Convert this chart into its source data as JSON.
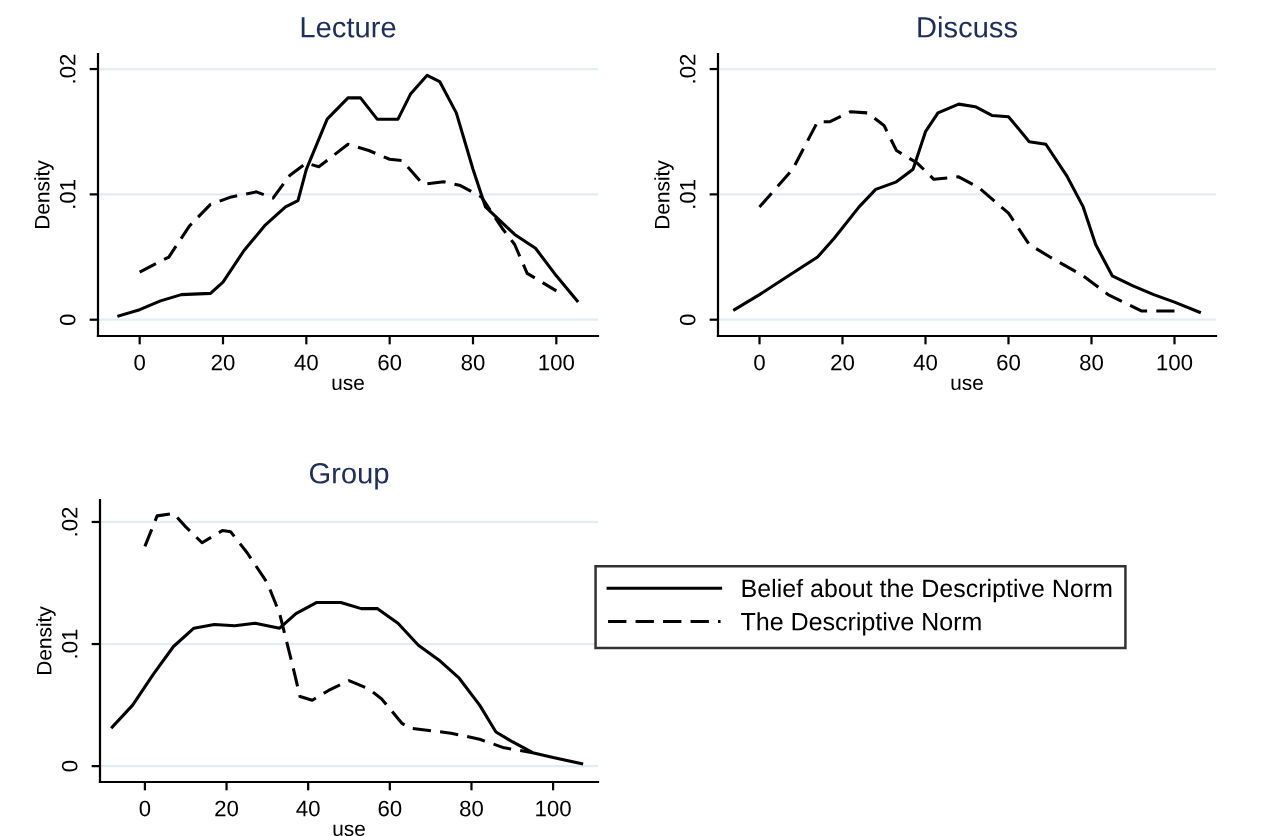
{
  "chart_data": [
    {
      "type": "line",
      "title": "Lecture",
      "xlabel": "use",
      "ylabel": "Density",
      "xlim": [
        -10,
        110
      ],
      "ylim": [
        -0.0013,
        0.0212
      ],
      "xticks": [
        0,
        20,
        40,
        60,
        80,
        100
      ],
      "yticks": [
        {
          "value": 0,
          "label": "0"
        },
        {
          "value": 0.01,
          "label": ".01"
        },
        {
          "value": 0.02,
          "label": ".02"
        }
      ],
      "grid": "y",
      "series": [
        {
          "color": "#000000",
          "line_style": "solid",
          "x": [
            -5,
            0,
            5,
            10,
            17,
            20,
            25,
            30,
            35,
            38,
            40,
            45,
            50,
            53,
            57,
            62,
            65,
            69,
            72,
            76,
            80,
            83,
            90,
            95,
            100,
            105
          ],
          "values": [
            0.0003,
            0.0008,
            0.0015,
            0.002,
            0.0021,
            0.003,
            0.0055,
            0.0075,
            0.009,
            0.0095,
            0.012,
            0.016,
            0.0177,
            0.0177,
            0.016,
            0.016,
            0.018,
            0.0195,
            0.019,
            0.0165,
            0.012,
            0.009,
            0.0068,
            0.0057,
            0.0035,
            0.0015
          ]
        },
        {
          "color": "#000000",
          "line_style": "dashed",
          "x": [
            0,
            7,
            12,
            17,
            22,
            28,
            32,
            36,
            40,
            43,
            50,
            55,
            60,
            63,
            68,
            73,
            77,
            82,
            87,
            90,
            93,
            100
          ],
          "values": [
            0.0038,
            0.005,
            0.0075,
            0.0092,
            0.0098,
            0.0102,
            0.0097,
            0.0115,
            0.0125,
            0.0122,
            0.014,
            0.0135,
            0.0128,
            0.0127,
            0.0108,
            0.011,
            0.0107,
            0.0098,
            0.0073,
            0.006,
            0.0037,
            0.0023
          ]
        }
      ]
    },
    {
      "type": "line",
      "title": "Discuss",
      "xlabel": "use",
      "ylabel": "Density",
      "xlim": [
        -10,
        110
      ],
      "ylim": [
        -0.0013,
        0.0212
      ],
      "xticks": [
        0,
        20,
        40,
        60,
        80,
        100
      ],
      "yticks": [
        {
          "value": 0,
          "label": "0"
        },
        {
          "value": 0.01,
          "label": ".01"
        },
        {
          "value": 0.02,
          "label": ".02"
        }
      ],
      "grid": "y",
      "series": [
        {
          "color": "#000000",
          "line_style": "solid",
          "x": [
            -6,
            0,
            7,
            14,
            18,
            24,
            28,
            33,
            37,
            40,
            43,
            48,
            52,
            56,
            60,
            65,
            69,
            74,
            78,
            81,
            85,
            90,
            95,
            100,
            106
          ],
          "values": [
            0.0008,
            0.002,
            0.0035,
            0.005,
            0.0065,
            0.009,
            0.0104,
            0.011,
            0.012,
            0.015,
            0.0165,
            0.0172,
            0.017,
            0.0163,
            0.0162,
            0.0142,
            0.014,
            0.0115,
            0.009,
            0.006,
            0.0035,
            0.0027,
            0.002,
            0.0014,
            0.0006
          ]
        },
        {
          "color": "#000000",
          "line_style": "dashed",
          "x": [
            0,
            8,
            14,
            17,
            22,
            26,
            30,
            33,
            38,
            42,
            48,
            53,
            60,
            65,
            70,
            78,
            84,
            92,
            100
          ],
          "values": [
            0.009,
            0.012,
            0.0158,
            0.0158,
            0.0166,
            0.0165,
            0.0155,
            0.0135,
            0.0125,
            0.0112,
            0.0114,
            0.0105,
            0.0085,
            0.006,
            0.005,
            0.0035,
            0.002,
            0.0007,
            0.0007
          ]
        }
      ]
    },
    {
      "type": "line",
      "title": "Group",
      "xlabel": "use",
      "ylabel": "Density",
      "xlim": [
        -11,
        111
      ],
      "ylim": [
        -0.0013,
        0.0218
      ],
      "xticks": [
        0,
        20,
        40,
        60,
        80,
        100
      ],
      "yticks": [
        {
          "value": 0,
          "label": "0"
        },
        {
          "value": 0.01,
          "label": ".01"
        },
        {
          "value": 0.02,
          "label": ".02"
        }
      ],
      "grid": "y",
      "legend": "right",
      "series": [
        {
          "name": "Belief about the Descriptive Norm",
          "color": "#000000",
          "line_style": "solid",
          "x": [
            -8,
            -3,
            2,
            7,
            12,
            17,
            22,
            27,
            33,
            37,
            42,
            48,
            53,
            57,
            62,
            67,
            72,
            77,
            82,
            86,
            90,
            95,
            100,
            107
          ],
          "values": [
            0.0032,
            0.005,
            0.0075,
            0.0098,
            0.0113,
            0.0116,
            0.0115,
            0.0117,
            0.0113,
            0.0125,
            0.0134,
            0.0134,
            0.0129,
            0.0129,
            0.0117,
            0.0099,
            0.0087,
            0.0072,
            0.005,
            0.0028,
            0.002,
            0.0011,
            0.0007,
            0.0002
          ]
        },
        {
          "name": "The Descriptive Norm",
          "color": "#000000",
          "line_style": "dashed",
          "x": [
            0,
            3,
            7,
            10,
            14,
            19,
            21,
            25,
            30,
            33,
            36,
            38,
            41,
            45,
            50,
            55,
            58,
            63,
            65,
            75,
            82,
            88,
            95
          ],
          "values": [
            0.018,
            0.0205,
            0.0207,
            0.0196,
            0.0183,
            0.0193,
            0.0192,
            0.0175,
            0.015,
            0.0125,
            0.0085,
            0.0057,
            0.0054,
            0.0062,
            0.007,
            0.0063,
            0.0055,
            0.0035,
            0.0031,
            0.0027,
            0.0022,
            0.0015,
            0.0011
          ]
        }
      ]
    }
  ]
}
